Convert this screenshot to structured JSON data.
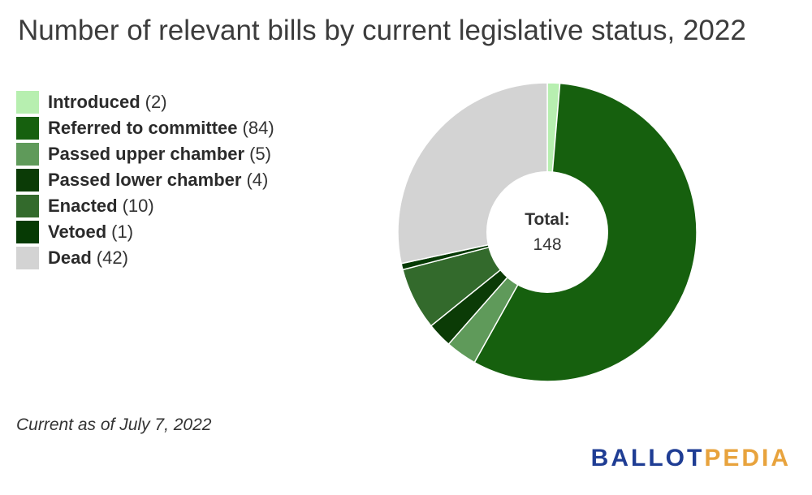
{
  "chart_data": {
    "type": "pie",
    "title": "Number of relevant bills by current legislative status, 2022",
    "categories": [
      "Introduced",
      "Referred to committee",
      "Passed upper chamber",
      "Passed lower chamber",
      "Enacted",
      "Vetoed",
      "Dead"
    ],
    "values": [
      2,
      84,
      5,
      4,
      10,
      1,
      42
    ],
    "colors": [
      "#b7efb0",
      "#16600e",
      "#5f9a5a",
      "#0b3b06",
      "#336a2c",
      "#063a04",
      "#d3d3d3"
    ],
    "center_label": "Total:",
    "center_value": "148",
    "legend_position": "left",
    "donut": true
  },
  "footnote": "Current as of July 7, 2022",
  "brand": {
    "part1": "BALLOT",
    "part2": "PEDIA"
  }
}
